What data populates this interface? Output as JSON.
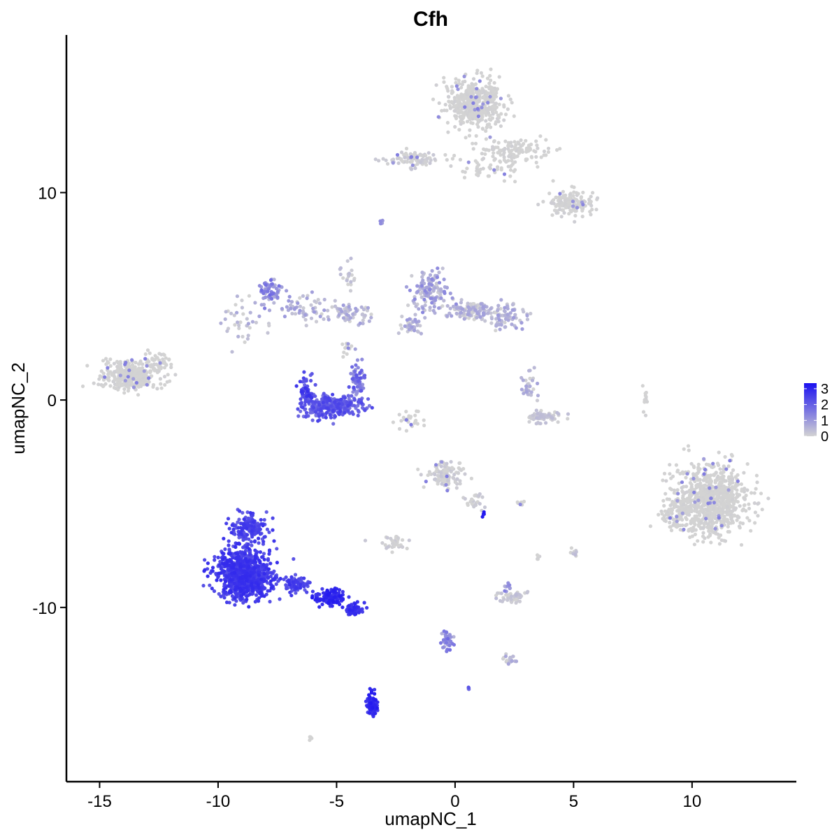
{
  "chart_data": {
    "type": "scatter",
    "title": "Cfh",
    "xlabel": "umapNC_1",
    "ylabel": "umapNC_2",
    "xlim": [
      -16.4,
      14.4
    ],
    "ylim": [
      -18.4,
      17.6
    ],
    "xticks": [
      -15,
      -10,
      -5,
      0,
      5,
      10
    ],
    "xtick_labels": [
      "-15",
      "-10",
      "-5",
      "0",
      "5",
      "10"
    ],
    "yticks": [
      -10,
      0,
      10
    ],
    "ytick_labels": [
      "-10",
      "0",
      "10"
    ],
    "grid": false,
    "legend": {
      "placement": "right",
      "type": "colorbar",
      "ticks": [
        0,
        1,
        2,
        3
      ],
      "tick_labels": [
        "0",
        "1",
        "2",
        "3"
      ],
      "low_color": "#d3d3d3",
      "high_color": "#1a10f0"
    },
    "clusters": [
      {
        "cx": 0.8,
        "cy": 14.3,
        "sx": 1.1,
        "sy": 1.0,
        "n": 500,
        "expr": 0.0,
        "spread": 0.02
      },
      {
        "cx": 2.6,
        "cy": 12.0,
        "sx": 1.4,
        "sy": 0.55,
        "n": 120,
        "expr": 0.0,
        "spread": 0.02
      },
      {
        "cx": 4.9,
        "cy": 9.5,
        "sx": 0.9,
        "sy": 0.55,
        "n": 150,
        "expr": 0.0,
        "spread": 0.03
      },
      {
        "cx": -1.8,
        "cy": 11.6,
        "sx": 1.1,
        "sy": 0.35,
        "n": 90,
        "expr": 0.02,
        "spread": 0.05
      },
      {
        "cx": 1.3,
        "cy": 11.2,
        "sx": 1.2,
        "sy": 0.5,
        "n": 50,
        "expr": 0.0,
        "spread": 0.02
      },
      {
        "cx": -13.7,
        "cy": 1.2,
        "sx": 1.1,
        "sy": 0.65,
        "n": 330,
        "expr": 0.0,
        "spread": 0.02
      },
      {
        "cx": -12.5,
        "cy": 1.8,
        "sx": 0.6,
        "sy": 0.5,
        "n": 40,
        "expr": 0.0,
        "spread": 0.02
      },
      {
        "cx": -7.8,
        "cy": 5.2,
        "sx": 0.5,
        "sy": 0.6,
        "n": 60,
        "expr": 0.35,
        "spread": 0.2
      },
      {
        "cx": -6.3,
        "cy": 4.4,
        "sx": 1.1,
        "sy": 0.6,
        "n": 60,
        "expr": 0.15,
        "spread": 0.15
      },
      {
        "cx": -4.3,
        "cy": 4.1,
        "sx": 0.7,
        "sy": 0.35,
        "n": 50,
        "expr": 0.12,
        "spread": 0.15
      },
      {
        "cx": -4.5,
        "cy": 6.0,
        "sx": 0.3,
        "sy": 0.9,
        "n": 20,
        "expr": 0.05,
        "spread": 0.08
      },
      {
        "cx": -5.2,
        "cy": -0.3,
        "sx": 1.2,
        "sy": 0.5,
        "n": 280,
        "expr": 0.6,
        "spread": 0.15
      },
      {
        "cx": -6.3,
        "cy": 0.4,
        "sx": 0.3,
        "sy": 0.7,
        "n": 50,
        "expr": 0.7,
        "spread": 0.15
      },
      {
        "cx": -4.1,
        "cy": 1.0,
        "sx": 0.35,
        "sy": 0.7,
        "n": 60,
        "expr": 0.45,
        "spread": 0.2
      },
      {
        "cx": -4.6,
        "cy": 2.6,
        "sx": 0.2,
        "sy": 0.4,
        "n": 12,
        "expr": 0.0,
        "spread": 0.05
      },
      {
        "cx": -1.0,
        "cy": 5.2,
        "sx": 0.7,
        "sy": 0.9,
        "n": 130,
        "expr": 0.2,
        "spread": 0.2
      },
      {
        "cx": 0.8,
        "cy": 4.3,
        "sx": 0.9,
        "sy": 0.45,
        "n": 120,
        "expr": 0.12,
        "spread": 0.15
      },
      {
        "cx": 2.2,
        "cy": 4.0,
        "sx": 0.6,
        "sy": 0.5,
        "n": 70,
        "expr": 0.15,
        "spread": 0.15
      },
      {
        "cx": -1.8,
        "cy": 3.6,
        "sx": 0.5,
        "sy": 0.4,
        "n": 40,
        "expr": 0.15,
        "spread": 0.15
      },
      {
        "cx": 3.7,
        "cy": -0.8,
        "sx": 0.7,
        "sy": 0.25,
        "n": 70,
        "expr": 0.05,
        "spread": 0.08
      },
      {
        "cx": 3.1,
        "cy": 0.6,
        "sx": 0.3,
        "sy": 0.7,
        "n": 30,
        "expr": 0.1,
        "spread": 0.15
      },
      {
        "cx": 10.8,
        "cy": -4.8,
        "sx": 1.4,
        "sy": 1.55,
        "n": 800,
        "expr": 0.0,
        "spread": 0.02
      },
      {
        "cx": 9.3,
        "cy": -5.6,
        "sx": 0.55,
        "sy": 0.9,
        "n": 80,
        "expr": 0.0,
        "spread": 0.02
      },
      {
        "cx": -0.4,
        "cy": -3.6,
        "sx": 0.8,
        "sy": 0.55,
        "n": 110,
        "expr": 0.02,
        "spread": 0.05
      },
      {
        "cx": 0.9,
        "cy": -4.9,
        "sx": 0.4,
        "sy": 0.4,
        "n": 25,
        "expr": 0.02,
        "spread": 0.05
      },
      {
        "cx": -8.9,
        "cy": -8.4,
        "sx": 1.0,
        "sy": 1.05,
        "n": 900,
        "expr": 0.75,
        "spread": 0.12
      },
      {
        "cx": -8.7,
        "cy": -6.2,
        "sx": 0.7,
        "sy": 0.6,
        "n": 150,
        "expr": 0.7,
        "spread": 0.12
      },
      {
        "cx": -5.3,
        "cy": -9.5,
        "sx": 0.6,
        "sy": 0.35,
        "n": 120,
        "expr": 0.85,
        "spread": 0.1
      },
      {
        "cx": -4.2,
        "cy": -10.1,
        "sx": 0.35,
        "sy": 0.25,
        "n": 50,
        "expr": 0.8,
        "spread": 0.1
      },
      {
        "cx": -6.7,
        "cy": -8.9,
        "sx": 0.6,
        "sy": 0.35,
        "n": 80,
        "expr": 0.72,
        "spread": 0.12
      },
      {
        "cx": -3.5,
        "cy": -14.6,
        "sx": 0.22,
        "sy": 0.55,
        "n": 70,
        "expr": 0.85,
        "spread": 0.1
      },
      {
        "cx": -2.6,
        "cy": -6.9,
        "sx": 0.45,
        "sy": 0.3,
        "n": 35,
        "expr": 0.02,
        "spread": 0.05
      },
      {
        "cx": 2.4,
        "cy": -9.5,
        "sx": 0.6,
        "sy": 0.22,
        "n": 55,
        "expr": 0.05,
        "spread": 0.08
      },
      {
        "cx": 2.2,
        "cy": -9.0,
        "sx": 0.15,
        "sy": 0.2,
        "n": 10,
        "expr": 0.3,
        "spread": 0.15
      },
      {
        "cx": -0.3,
        "cy": -11.6,
        "sx": 0.22,
        "sy": 0.45,
        "n": 40,
        "expr": 0.35,
        "spread": 0.2
      },
      {
        "cx": 2.3,
        "cy": -12.5,
        "sx": 0.3,
        "sy": 0.2,
        "n": 20,
        "expr": 0.1,
        "spread": 0.15
      },
      {
        "cx": 5.0,
        "cy": -7.4,
        "sx": 0.2,
        "sy": 0.2,
        "n": 12,
        "expr": 0.05,
        "spread": 0.08
      },
      {
        "cx": 8.0,
        "cy": -0.1,
        "sx": 0.1,
        "sy": 0.5,
        "n": 15,
        "expr": 0.0,
        "spread": 0.02
      },
      {
        "cx": -2.0,
        "cy": -0.9,
        "sx": 0.6,
        "sy": 0.5,
        "n": 25,
        "expr": 0.0,
        "spread": 0.02
      },
      {
        "cx": -9.1,
        "cy": 3.9,
        "sx": 1.3,
        "sy": 1.2,
        "n": 40,
        "expr": 0.1,
        "spread": 0.15
      },
      {
        "cx": -3.1,
        "cy": 8.6,
        "sx": 0.1,
        "sy": 0.15,
        "n": 6,
        "expr": 0.3,
        "spread": 0.1
      },
      {
        "cx": 0.6,
        "cy": -13.9,
        "sx": 0.08,
        "sy": 0.1,
        "n": 5,
        "expr": 0.55,
        "spread": 0.1
      },
      {
        "cx": 1.2,
        "cy": -5.5,
        "sx": 0.05,
        "sy": 0.1,
        "n": 4,
        "expr": 0.95,
        "spread": 0.05
      },
      {
        "cx": -6.1,
        "cy": -16.3,
        "sx": 0.1,
        "sy": 0.1,
        "n": 5,
        "expr": 0.0,
        "spread": 0.02
      },
      {
        "cx": 3.5,
        "cy": -7.6,
        "sx": 0.1,
        "sy": 0.15,
        "n": 6,
        "expr": 0.0,
        "spread": 0.02
      },
      {
        "cx": 2.8,
        "cy": -5.0,
        "sx": 0.2,
        "sy": 0.1,
        "n": 6,
        "expr": 0.0,
        "spread": 0.02
      }
    ]
  }
}
